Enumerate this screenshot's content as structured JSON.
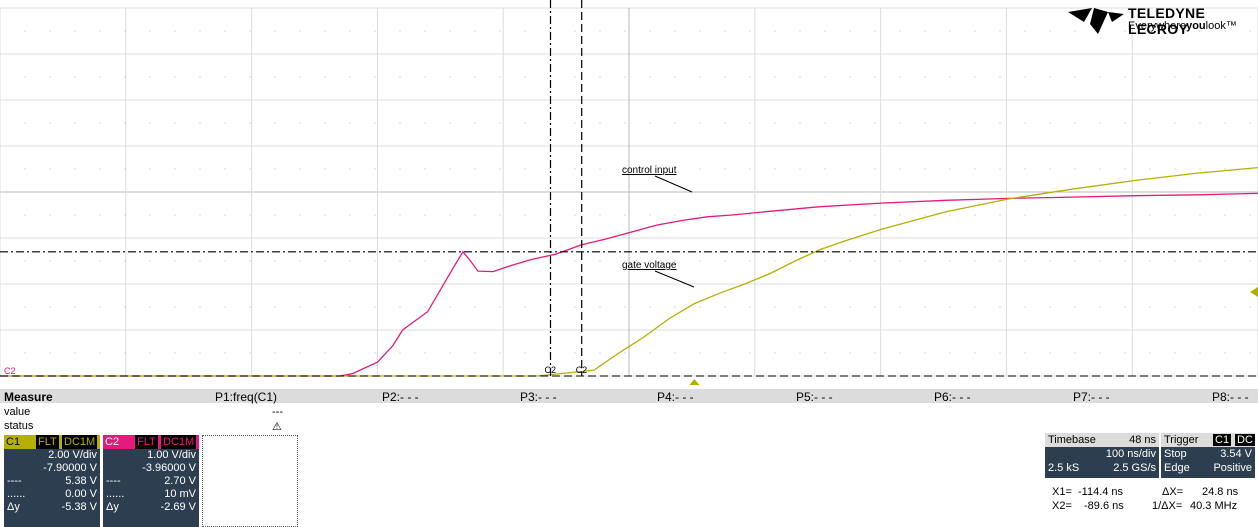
{
  "logo": {
    "brand": "TELEDYNE LECROY",
    "slogan_pre": "Everywhere",
    "slogan_bold": "you",
    "slogan_post": "look"
  },
  "colors": {
    "c1": "#b5b000",
    "c2": "#e8197d",
    "panel": "#2c3e50"
  },
  "annotations": {
    "control_input": "control input",
    "gate_voltage": "gate voltage",
    "cursor1_label": "C2",
    "cursor2_label": "C2",
    "ground_label": "C2"
  },
  "measure": {
    "title": "Measure",
    "params": [
      "P1:freq(C1)",
      "P2:- - -",
      "P3:- - -",
      "P4:- - -",
      "P5:- - -",
      "P6:- - -",
      "P7:- - -",
      "P8:- - -"
    ],
    "value_label": "value",
    "status_label": "status",
    "p1_value": "---",
    "p1_status": "⚠"
  },
  "channels": [
    {
      "name": "C1",
      "tag1": "FLT",
      "tag2": "DC1M",
      "vdiv": "2.00 V/div",
      "offset": "-7.90000 V",
      "dash_val": "5.38 V",
      "dot_val": "0.00 V",
      "dy_label": "Δy",
      "dy": "-5.38 V"
    },
    {
      "name": "C2",
      "tag1": "FLT",
      "tag2": "DC1M",
      "vdiv": "1.00 V/div",
      "offset": "-3.96000 V",
      "dash_val": "2.70 V",
      "dot_val": "10 mV",
      "dy_label": "Δy",
      "dy": "-2.69 V"
    }
  ],
  "timebase": {
    "label": "Timebase",
    "delay": "48 ns",
    "scale": "100 ns/div",
    "samples": "2.5 kS",
    "rate": "2.5 GS/s"
  },
  "trigger": {
    "label": "Trigger",
    "ch": "C1",
    "coupling": "DC",
    "mode": "Stop",
    "level": "3.54 V",
    "type": "Edge",
    "slope": "Positive"
  },
  "cursor_readout": {
    "x1_label": "X1=",
    "x1": "-114.4 ns",
    "dx_label": "ΔX=",
    "dx": "24.8 ns",
    "x2_label": "X2=",
    "x2": "-89.6 ns",
    "inv_label": "1/ΔX=",
    "inv": "40.3 MHz"
  },
  "chart_data": {
    "type": "line",
    "x_unit": "ns",
    "xlim": [
      -552,
      448
    ],
    "series": [
      {
        "name": "control input",
        "channel": "C2",
        "color": "#e8197d",
        "x": [
          -552,
          -282,
          -272,
          -252,
          -240,
          -232,
          -212,
          -192,
          -184,
          -178,
          -172,
          -160,
          -146,
          -130,
          -110,
          -90,
          -70,
          -50,
          -30,
          -10,
          10,
          30,
          60,
          100,
          150,
          200,
          250,
          300,
          350,
          400,
          448
        ],
        "y": [
          0.0,
          0.0,
          0.05,
          0.3,
          0.65,
          1.0,
          1.4,
          2.34,
          2.7,
          2.5,
          2.28,
          2.27,
          2.4,
          2.53,
          2.65,
          2.85,
          2.98,
          3.13,
          3.28,
          3.38,
          3.46,
          3.5,
          3.58,
          3.68,
          3.76,
          3.82,
          3.86,
          3.89,
          3.92,
          3.94,
          3.97
        ]
      },
      {
        "name": "gate voltage",
        "channel": "C1",
        "color": "#b5b000",
        "x": [
          -552,
          -125,
          -80,
          -60,
          -40,
          -20,
          0,
          20,
          40,
          60,
          80,
          100,
          120,
          150,
          200,
          250,
          300,
          350,
          400,
          448
        ],
        "y": [
          0.0,
          0.0,
          0.25,
          1.0,
          1.7,
          2.5,
          3.15,
          3.6,
          4.0,
          4.45,
          5.0,
          5.5,
          5.88,
          6.4,
          7.14,
          7.7,
          8.12,
          8.5,
          8.82,
          9.06
        ]
      }
    ],
    "cursors": {
      "x1": -114.4,
      "x2": -89.6
    }
  }
}
